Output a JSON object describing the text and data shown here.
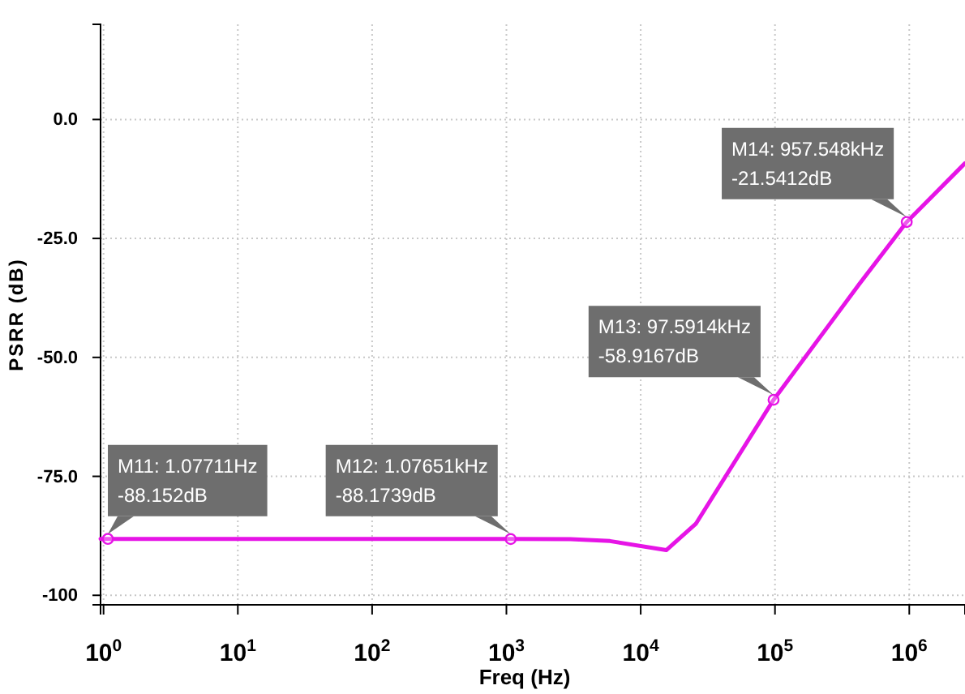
{
  "chart_data": {
    "type": "line",
    "xlabel": "Freq (Hz)",
    "ylabel": "PSRR (dB)",
    "log": "x",
    "xlim": [
      0.95,
      2600000
    ],
    "ylim": [
      -102,
      20
    ],
    "xticks": [
      {
        "value": 1,
        "label": "10$^{0}$"
      },
      {
        "value": 10,
        "label": "10$^{1}$"
      },
      {
        "value": 100,
        "label": "10$^{2}$"
      },
      {
        "value": 1000,
        "label": "10$^{3}$"
      },
      {
        "value": 10000,
        "label": "10$^{4}$"
      },
      {
        "value": 100000,
        "label": "10$^{5}$"
      },
      {
        "value": 1000000,
        "label": "10$^{6}$"
      }
    ],
    "yticks": [
      {
        "value": 0,
        "label": "0.0"
      },
      {
        "value": -25,
        "label": "-25.0"
      },
      {
        "value": -50,
        "label": "-50.0"
      },
      {
        "value": -75,
        "label": "-75.0"
      },
      {
        "value": -100,
        "label": "-100"
      }
    ],
    "grid": true,
    "series": [
      {
        "color": "#e614e6",
        "marker": "none",
        "x": [
          0.95,
          1.07711,
          100,
          1076.51,
          3000,
          5900,
          15500,
          25700,
          97591.4,
          427000,
          957548,
          2600000
        ],
        "values": [
          -88.15,
          -88.152,
          -88.16,
          -88.1739,
          -88.2,
          -88.6,
          -90.5,
          -85,
          -58.9167,
          -34.5,
          -21.5412,
          -9.2
        ]
      },
      {
        "type": "scatter",
        "color": "#e614e6",
        "marker": "circle",
        "x": [
          1.07711,
          1076.51,
          97591.4,
          957548
        ],
        "values": [
          -88.152,
          -88.1739,
          -58.9167,
          -21.5412
        ]
      }
    ],
    "annotations": [
      {
        "text": "M11: 1.07711Hz\n-88.152dB",
        "x": 1.07711,
        "y": -88.152
      },
      {
        "text": "M12: 1.07651kHz\n-88.1739dB",
        "x": 1076.51,
        "y": -88.1739
      },
      {
        "text": "M13: 97.5914kHz\n-58.9167dB",
        "x": 97591.4,
        "y": -58.9167
      },
      {
        "text": "M14: 957.548kHz\n-21.5412dB",
        "x": 957548,
        "y": -21.5412
      }
    ]
  }
}
